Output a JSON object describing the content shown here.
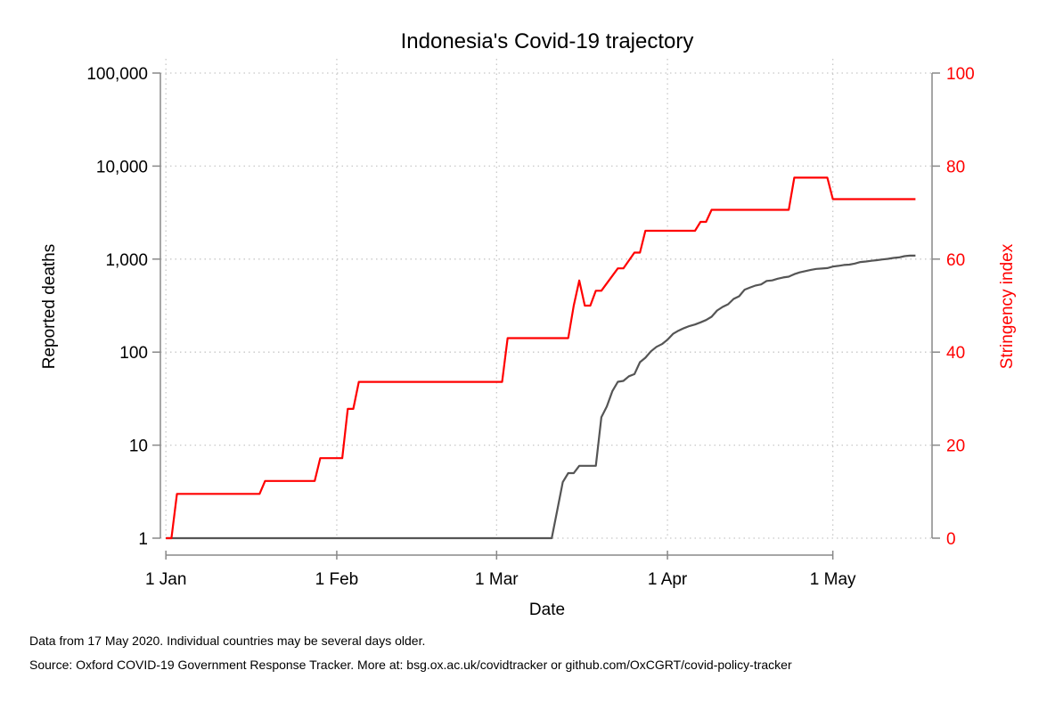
{
  "chart_data": {
    "type": "line",
    "title": "Indonesia's Covid-19 trajectory",
    "xlabel": "Date",
    "ylabel": "Reported deaths",
    "y2label": "Stringency index",
    "x_ticks": [
      {
        "date": "2020-01-01",
        "label": "1 Jan"
      },
      {
        "date": "2020-02-01",
        "label": "1 Feb"
      },
      {
        "date": "2020-03-01",
        "label": "1 Mar"
      },
      {
        "date": "2020-04-01",
        "label": "1 Apr"
      },
      {
        "date": "2020-05-01",
        "label": "1 May"
      }
    ],
    "xlim": [
      "2019-12-31",
      "2020-05-19"
    ],
    "y_scale": "log",
    "ylim": [
      1,
      100000
    ],
    "y_ticks": [
      {
        "value": 1,
        "label": "1"
      },
      {
        "value": 10,
        "label": "10"
      },
      {
        "value": 100,
        "label": "100"
      },
      {
        "value": 1000,
        "label": "1,000"
      },
      {
        "value": 10000,
        "label": "10,000"
      },
      {
        "value": 100000,
        "label": "100,000"
      }
    ],
    "y2lim": [
      0,
      100
    ],
    "y2_ticks": [
      {
        "value": 0,
        "label": "0"
      },
      {
        "value": 20,
        "label": "20"
      },
      {
        "value": 40,
        "label": "40"
      },
      {
        "value": 60,
        "label": "60"
      },
      {
        "value": 80,
        "label": "80"
      },
      {
        "value": 100,
        "label": "100"
      }
    ],
    "grid": true,
    "series": [
      {
        "axis": "left",
        "color": "#555555",
        "x": [
          "2020-01-01",
          "2020-03-11",
          "2020-03-12",
          "2020-03-13",
          "2020-03-14",
          "2020-03-15",
          "2020-03-16",
          "2020-03-17",
          "2020-03-18",
          "2020-03-19",
          "2020-03-20",
          "2020-03-21",
          "2020-03-22",
          "2020-03-23",
          "2020-03-24",
          "2020-03-25",
          "2020-03-26",
          "2020-03-27",
          "2020-03-28",
          "2020-03-29",
          "2020-03-30",
          "2020-03-31",
          "2020-04-01",
          "2020-04-02",
          "2020-04-03",
          "2020-04-04",
          "2020-04-05",
          "2020-04-06",
          "2020-04-07",
          "2020-04-08",
          "2020-04-09",
          "2020-04-10",
          "2020-04-11",
          "2020-04-12",
          "2020-04-13",
          "2020-04-14",
          "2020-04-15",
          "2020-04-16",
          "2020-04-17",
          "2020-04-18",
          "2020-04-19",
          "2020-04-20",
          "2020-04-21",
          "2020-04-22",
          "2020-04-23",
          "2020-04-24",
          "2020-04-25",
          "2020-04-26",
          "2020-04-27",
          "2020-04-28",
          "2020-04-29",
          "2020-04-30",
          "2020-05-01",
          "2020-05-02",
          "2020-05-03",
          "2020-05-04",
          "2020-05-05",
          "2020-05-06",
          "2020-05-07",
          "2020-05-08",
          "2020-05-09",
          "2020-05-10",
          "2020-05-11",
          "2020-05-12",
          "2020-05-13",
          "2020-05-14",
          "2020-05-15",
          "2020-05-16"
        ],
        "y": [
          1,
          1,
          2,
          4,
          5,
          5,
          6,
          6,
          6,
          6,
          20,
          26,
          38,
          48,
          49,
          55,
          58,
          78,
          87,
          102,
          114,
          122,
          136,
          157,
          170,
          181,
          191,
          198,
          209,
          221,
          240,
          280,
          306,
          327,
          373,
          399,
          469,
          496,
          520,
          535,
          582,
          590,
          616,
          635,
          647,
          689,
          720,
          743,
          765,
          784,
          792,
          800,
          831,
          845,
          864,
          872,
          895,
          930,
          943,
          959,
          973,
          991,
          1007,
          1028,
          1043,
          1076,
          1089,
          1091
        ]
      },
      {
        "axis": "right",
        "color": "#ff0000",
        "x": [
          "2020-01-01",
          "2020-01-02",
          "2020-01-03",
          "2020-01-18",
          "2020-01-19",
          "2020-01-28",
          "2020-01-29",
          "2020-02-02",
          "2020-02-03",
          "2020-02-04",
          "2020-02-05",
          "2020-03-02",
          "2020-03-03",
          "2020-03-14",
          "2020-03-15",
          "2020-03-16",
          "2020-03-17",
          "2020-03-18",
          "2020-03-19",
          "2020-03-20",
          "2020-03-23",
          "2020-03-24",
          "2020-03-26",
          "2020-03-27",
          "2020-03-28",
          "2020-04-06",
          "2020-04-07",
          "2020-04-08",
          "2020-04-09",
          "2020-04-10",
          "2020-04-23",
          "2020-04-24",
          "2020-04-25",
          "2020-04-29",
          "2020-04-30",
          "2020-05-01",
          "2020-05-02",
          "2020-05-16"
        ],
        "y": [
          0,
          0,
          9.52,
          9.52,
          12.3,
          12.3,
          17.2,
          17.2,
          27.8,
          27.8,
          33.6,
          33.6,
          43.0,
          43.0,
          50.0,
          55.4,
          50.0,
          50.0,
          53.2,
          53.2,
          58.0,
          58.0,
          61.4,
          61.4,
          66.1,
          66.1,
          68.0,
          68.0,
          70.6,
          70.6,
          70.6,
          77.5,
          77.5,
          77.5,
          77.5,
          72.9,
          72.9,
          72.9
        ]
      }
    ]
  },
  "footnotes": {
    "line1": "Data from 17 May 2020. Individual countries may be several days older.",
    "line2": "Source: Oxford COVID-19 Government Response Tracker. More at: bsg.ox.ac.uk/covidtracker or github.com/OxCGRT/covid-policy-tracker"
  }
}
